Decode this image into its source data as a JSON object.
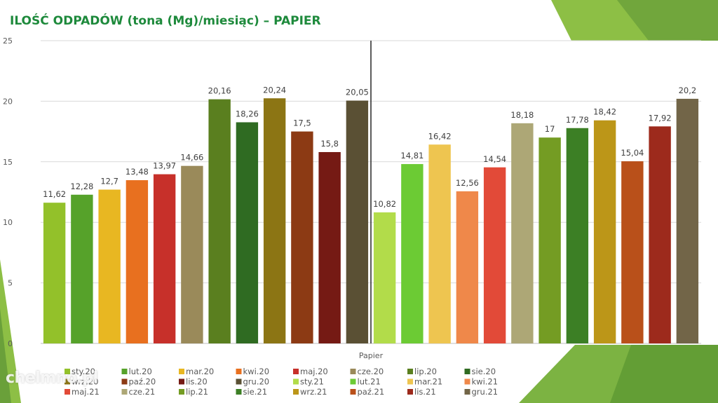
{
  "title": "ILOŚĆ ODPADÓW (tona (Mg)/miesiąc) – PAPIER",
  "watermark": "chelmno.pl",
  "chart_data": {
    "type": "bar",
    "categories": [
      "sty.20",
      "lut.20",
      "mar.20",
      "kwi.20",
      "maj.20",
      "cze.20",
      "lip.20",
      "sie.20",
      "wrz.20",
      "paź.20",
      "lis.20",
      "gru.20",
      "sty.21",
      "lut.21",
      "mar.21",
      "kwi.21",
      "maj.21",
      "cze.21",
      "lip.21",
      "sie.21",
      "wrz.21",
      "paź.21",
      "lis.21",
      "gru.21"
    ],
    "values": [
      11.62,
      12.28,
      12.7,
      13.48,
      13.97,
      14.66,
      20.16,
      18.26,
      20.24,
      17.5,
      15.8,
      20.05,
      10.82,
      14.81,
      16.42,
      12.56,
      14.54,
      18.18,
      17,
      17.78,
      18.42,
      15.04,
      17.92,
      20.2
    ],
    "data_labels": [
      "11,62",
      "12,28",
      "12,7",
      "13,48",
      "13,97",
      "14,66",
      "20,16",
      "18,26",
      "20,24",
      "17,5",
      "15,8",
      "20,05",
      "10,82",
      "14,81",
      "16,42",
      "12,56",
      "14,54",
      "18,18",
      "17",
      "17,78",
      "18,42",
      "15,04",
      "17,92",
      "20,2"
    ],
    "colors": [
      "#93c12a",
      "#56a22a",
      "#e8b722",
      "#e8701f",
      "#c7302a",
      "#9a8a5a",
      "#5a7f1f",
      "#2f6b22",
      "#8c7514",
      "#8c3a14",
      "#751a14",
      "#5a5034",
      "#b2dc4a",
      "#6ccb34",
      "#eec550",
      "#ef884a",
      "#e24a38",
      "#ada776",
      "#749c23",
      "#3c7f25",
      "#bc9618",
      "#b9501a",
      "#9d2a1c",
      "#726548"
    ],
    "xlabel": "Papier",
    "ylabel": "",
    "ylim": [
      0,
      25
    ],
    "yticks": [
      0,
      5,
      10,
      15,
      20,
      25
    ],
    "grid": true,
    "legend_position": "bottom",
    "divider_after_index": 11
  }
}
